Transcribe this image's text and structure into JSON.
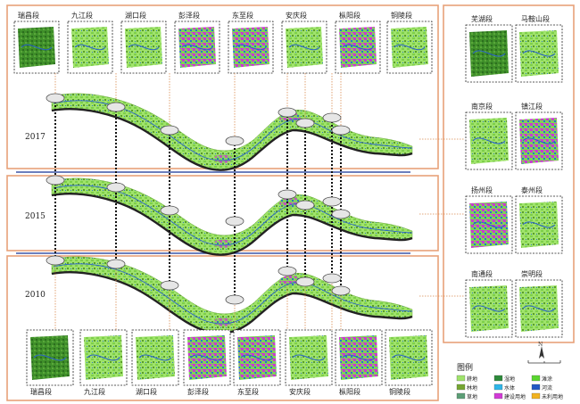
{
  "years": [
    "2017",
    "2015",
    "2010"
  ],
  "top_segments": [
    "瑞昌段",
    "九江段",
    "湖口段",
    "彭泽段",
    "东至段",
    "安庆段",
    "枞阳段",
    "铜陵段"
  ],
  "bottom_segments": [
    "瑞昌段",
    "九江段",
    "湖口段",
    "彭泽段",
    "东至段",
    "安庆段",
    "枞阳段",
    "铜陵段"
  ],
  "right_panels": [
    [
      "芜湖段",
      "马鞍山段"
    ],
    [
      "南京段",
      "镇江段"
    ],
    [
      "扬州段",
      "泰州段"
    ],
    [
      "南通段",
      "崇明段"
    ]
  ],
  "legend": {
    "title": "图例",
    "items": [
      {
        "label": "耕地",
        "color": "#9fe36b"
      },
      {
        "label": "林地",
        "color": "#76a632"
      },
      {
        "label": "草地",
        "color": "#5c9e76"
      },
      {
        "label": "湿地",
        "color": "#2d8a3a"
      },
      {
        "label": "水体",
        "color": "#2fb6e8"
      },
      {
        "label": "建设用地",
        "color": "#d23ad6"
      },
      {
        "label": "滩涂",
        "color": "#5ad62f"
      },
      {
        "label": "河流",
        "color": "#2257c4"
      },
      {
        "label": "未利用地",
        "color": "#f2b31f"
      }
    ]
  },
  "north_label": "N",
  "colors": {
    "frame": "#e8a279",
    "divider": "#3b55a7",
    "crop": "#9fe36b",
    "forest": "#4f9a2c",
    "water": "#2257c4",
    "urban": "#d23ad6"
  }
}
